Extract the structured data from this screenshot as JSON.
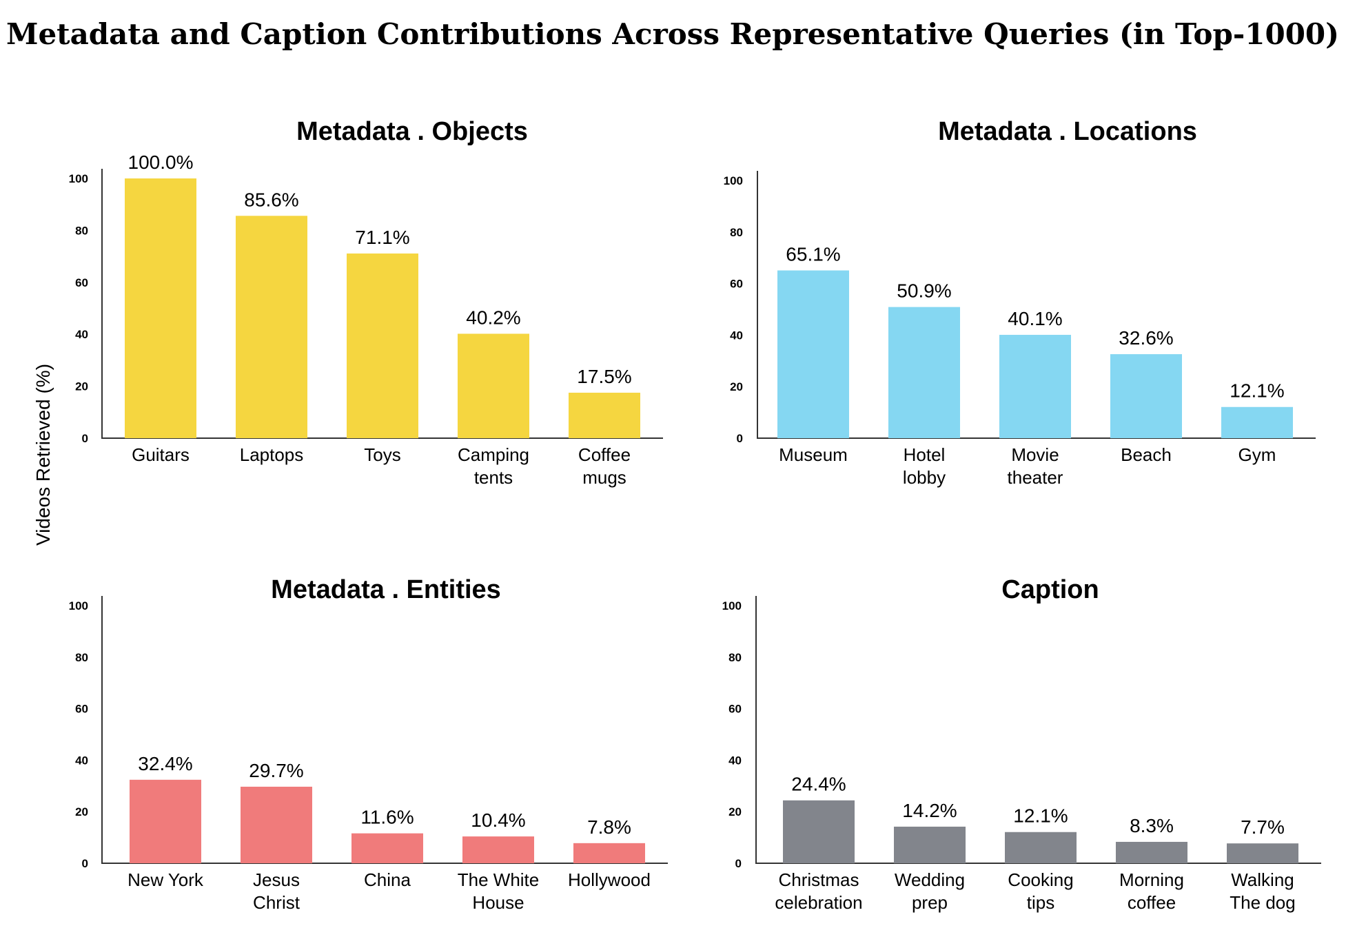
{
  "title": "Metadata and Caption Contributions Across Representative Queries (in Top-1000)",
  "ylabel": "Videos Retrieved (%)",
  "colors": {
    "objects": "#f5d640",
    "locations": "#85d7f2",
    "entities": "#f07b7b",
    "caption": "#82858c"
  },
  "chart_data": [
    {
      "type": "bar",
      "title": "Metadata . Objects",
      "categories": [
        [
          "Guitars"
        ],
        [
          "Laptops"
        ],
        [
          "Toys"
        ],
        [
          "Camping",
          "tents"
        ],
        [
          "Coffee",
          "mugs"
        ]
      ],
      "values": [
        100.0,
        85.6,
        71.1,
        40.2,
        17.5
      ],
      "value_labels": [
        "100.0%",
        "85.6%",
        "71.1%",
        "40.2%",
        "17.5%"
      ],
      "ylim": [
        0,
        100
      ],
      "yticks": [
        0,
        20,
        40,
        60,
        80,
        100
      ],
      "color": "#f5d640"
    },
    {
      "type": "bar",
      "title": "Metadata . Locations",
      "categories": [
        [
          "Museum"
        ],
        [
          "Hotel",
          "lobby"
        ],
        [
          "Movie",
          "theater"
        ],
        [
          "Beach"
        ],
        [
          "Gym"
        ]
      ],
      "values": [
        65.1,
        50.9,
        40.1,
        32.6,
        12.1
      ],
      "value_labels": [
        "65.1%",
        "50.9%",
        "40.1%",
        "32.6%",
        "12.1%"
      ],
      "ylim": [
        0,
        100
      ],
      "yticks": [
        0,
        20,
        40,
        60,
        80,
        100
      ],
      "color": "#85d7f2"
    },
    {
      "type": "bar",
      "title": "Metadata . Entities",
      "categories": [
        [
          "New York"
        ],
        [
          "Jesus",
          "Christ"
        ],
        [
          "China"
        ],
        [
          "The White",
          "House"
        ],
        [
          "Hollywood"
        ]
      ],
      "values": [
        32.4,
        29.7,
        11.6,
        10.4,
        7.8
      ],
      "value_labels": [
        "32.4%",
        "29.7%",
        "11.6%",
        "10.4%",
        "7.8%"
      ],
      "ylim": [
        0,
        100
      ],
      "yticks": [
        0,
        20,
        40,
        60,
        80,
        100
      ],
      "color": "#f07b7b"
    },
    {
      "type": "bar",
      "title": "Caption",
      "categories": [
        [
          "Christmas",
          "celebration"
        ],
        [
          "Wedding",
          "prep"
        ],
        [
          "Cooking",
          "tips"
        ],
        [
          "Morning",
          "coffee"
        ],
        [
          "Walking",
          "The dog"
        ]
      ],
      "values": [
        24.4,
        14.2,
        12.1,
        8.3,
        7.7
      ],
      "value_labels": [
        "24.4%",
        "14.2%",
        "12.1%",
        "8.3%",
        "7.7%"
      ],
      "ylim": [
        0,
        100
      ],
      "yticks": [
        0,
        20,
        40,
        60,
        80,
        100
      ],
      "color": "#82858c"
    }
  ]
}
